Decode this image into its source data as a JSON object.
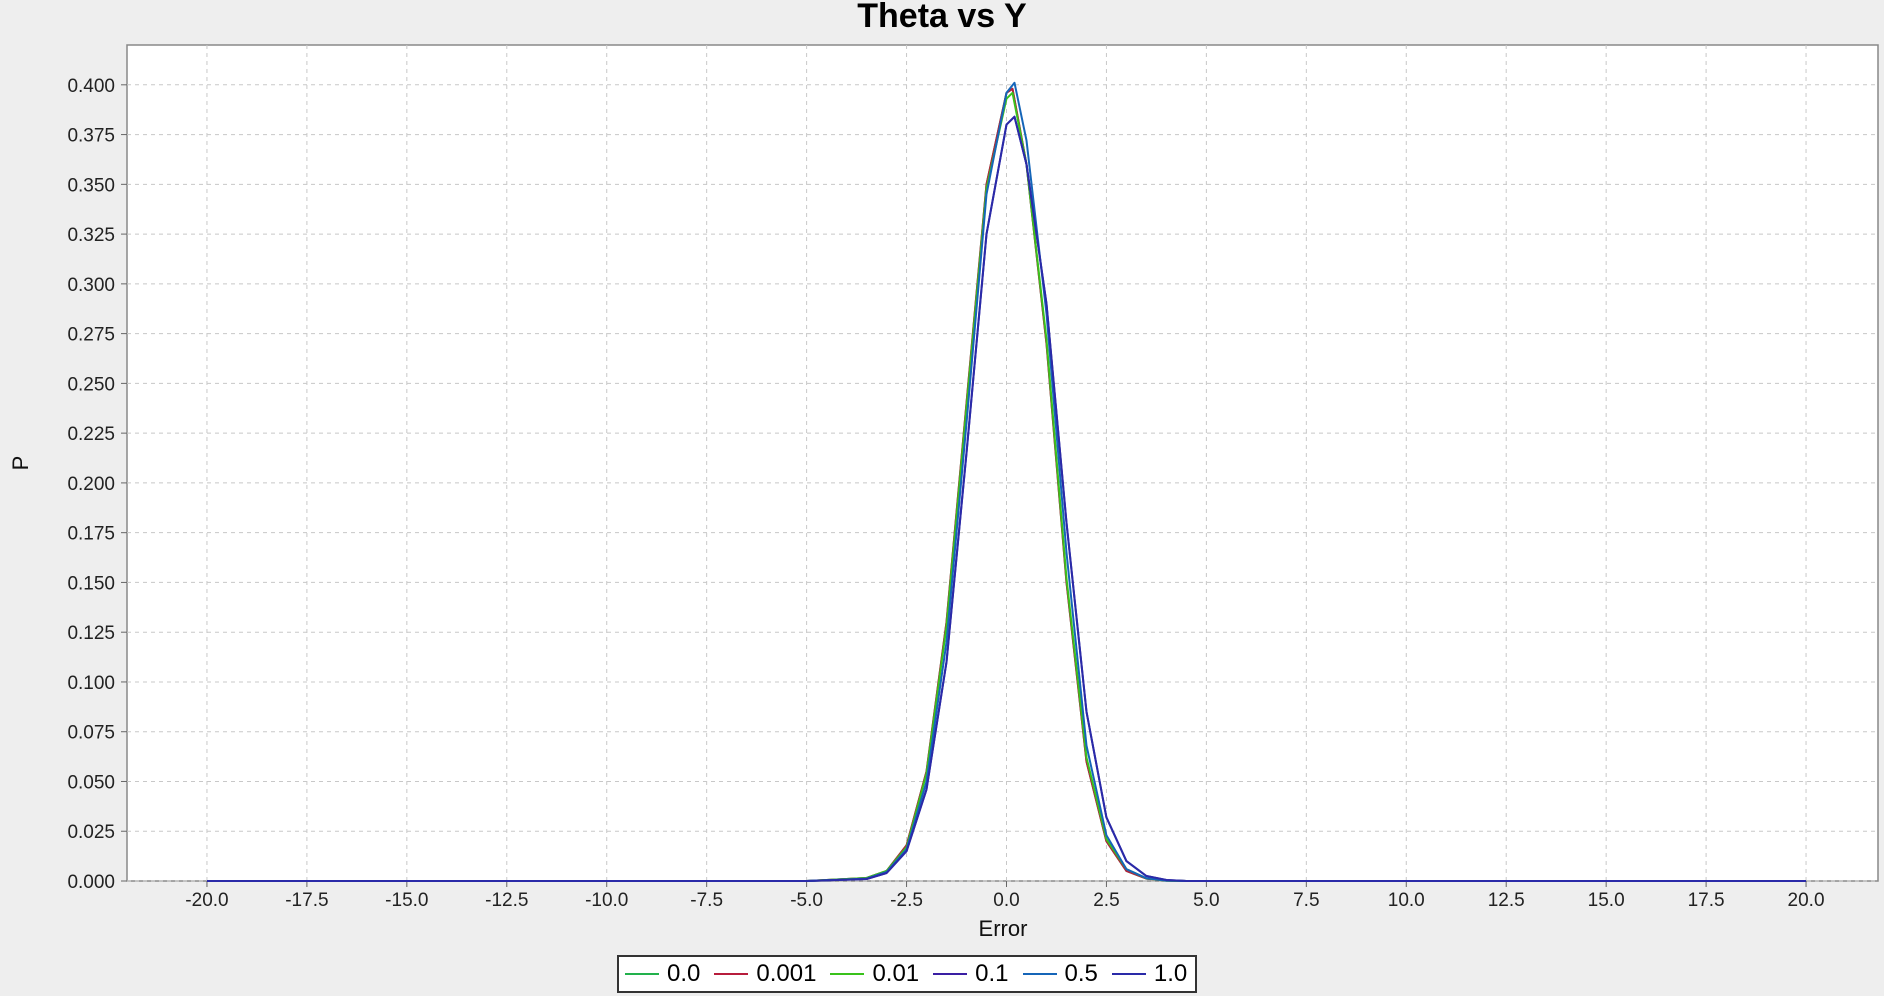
{
  "chart_data": {
    "type": "line",
    "title": "Theta vs Y",
    "xlabel": "Error",
    "ylabel": "P",
    "xlim": [
      -22,
      21.8
    ],
    "ylim": [
      0,
      0.42
    ],
    "x_ticks": [
      "-20.0",
      "-17.5",
      "-15.0",
      "-12.5",
      "-10.0",
      "-7.5",
      "-5.0",
      "-2.5",
      "0.0",
      "2.5",
      "5.0",
      "7.5",
      "10.0",
      "12.5",
      "15.0",
      "17.5",
      "20.0"
    ],
    "y_ticks": [
      "0.000",
      "0.025",
      "0.050",
      "0.075",
      "0.100",
      "0.125",
      "0.150",
      "0.175",
      "0.200",
      "0.225",
      "0.250",
      "0.275",
      "0.300",
      "0.325",
      "0.350",
      "0.375",
      "0.400"
    ],
    "grid": true,
    "legend_position": "bottom",
    "series": [
      {
        "name": "0.0",
        "color": "#22b14c",
        "x": [
          -20,
          -5,
          -3.5,
          -3,
          -2.5,
          -2,
          -1.5,
          -1,
          -0.5,
          0,
          0.15,
          0.5,
          1,
          1.5,
          2,
          2.5,
          3,
          3.5,
          4,
          4.5,
          20
        ],
        "y": [
          0,
          0,
          0.0015,
          0.005,
          0.018,
          0.055,
          0.13,
          0.24,
          0.35,
          0.396,
          0.398,
          0.36,
          0.27,
          0.15,
          0.06,
          0.02,
          0.005,
          0.0012,
          0.0002,
          0,
          0
        ]
      },
      {
        "name": "0.001",
        "color": "#b71c3c",
        "x": [
          -20,
          -5,
          -3.5,
          -3,
          -2.5,
          -2,
          -1.5,
          -1,
          -0.5,
          0,
          0.15,
          0.5,
          1,
          1.5,
          2,
          2.5,
          3,
          3.5,
          4,
          4.5,
          20
        ],
        "y": [
          0,
          0,
          0.0015,
          0.005,
          0.018,
          0.055,
          0.13,
          0.24,
          0.35,
          0.396,
          0.398,
          0.36,
          0.27,
          0.15,
          0.06,
          0.02,
          0.005,
          0.0012,
          0.0002,
          0,
          0
        ]
      },
      {
        "name": "0.01",
        "color": "#39c21b",
        "x": [
          -20,
          -5,
          -3.5,
          -3,
          -2.5,
          -2,
          -1.5,
          -1,
          -0.5,
          0,
          0.15,
          0.5,
          1,
          1.5,
          2,
          2.5,
          3,
          3.5,
          4,
          4.5,
          20
        ],
        "y": [
          0,
          0,
          0.0015,
          0.005,
          0.017,
          0.054,
          0.128,
          0.238,
          0.348,
          0.393,
          0.396,
          0.36,
          0.272,
          0.152,
          0.062,
          0.021,
          0.006,
          0.0013,
          0.0002,
          0,
          0
        ]
      },
      {
        "name": "0.1",
        "color": "#3a1fa3",
        "x": [
          -20,
          -5,
          -3.5,
          -3,
          -2.5,
          -2,
          -1.5,
          -1,
          -0.5,
          0,
          0.2,
          0.5,
          1,
          1.5,
          2,
          2.5,
          3,
          3.5,
          4,
          4.5,
          20
        ],
        "y": [
          0,
          0,
          0.001,
          0.004,
          0.015,
          0.046,
          0.11,
          0.215,
          0.325,
          0.38,
          0.384,
          0.36,
          0.29,
          0.18,
          0.085,
          0.032,
          0.01,
          0.0025,
          0.0005,
          0,
          0
        ]
      },
      {
        "name": "0.5",
        "color": "#1565b8",
        "x": [
          -20,
          -5,
          -3.5,
          -3,
          -2.5,
          -2,
          -1.5,
          -1,
          -0.5,
          0,
          0.2,
          0.5,
          1,
          1.5,
          2,
          2.5,
          3,
          3.5,
          4,
          4.5,
          20
        ],
        "y": [
          0,
          0,
          0.0012,
          0.0045,
          0.016,
          0.05,
          0.12,
          0.23,
          0.345,
          0.396,
          0.401,
          0.372,
          0.285,
          0.165,
          0.068,
          0.023,
          0.006,
          0.0014,
          0.0002,
          0,
          0
        ]
      },
      {
        "name": "1.0",
        "color": "#2a2aa8",
        "x": [
          -20,
          -5,
          -3.5,
          -3,
          -2.5,
          -2,
          -1.5,
          -1,
          -0.5,
          0,
          0.2,
          0.5,
          1,
          1.5,
          2,
          2.5,
          3,
          3.5,
          4,
          4.5,
          20
        ],
        "y": [
          0,
          0,
          0.001,
          0.004,
          0.015,
          0.046,
          0.11,
          0.215,
          0.325,
          0.38,
          0.384,
          0.36,
          0.29,
          0.18,
          0.085,
          0.032,
          0.01,
          0.0025,
          0.0005,
          0,
          0
        ]
      }
    ]
  }
}
